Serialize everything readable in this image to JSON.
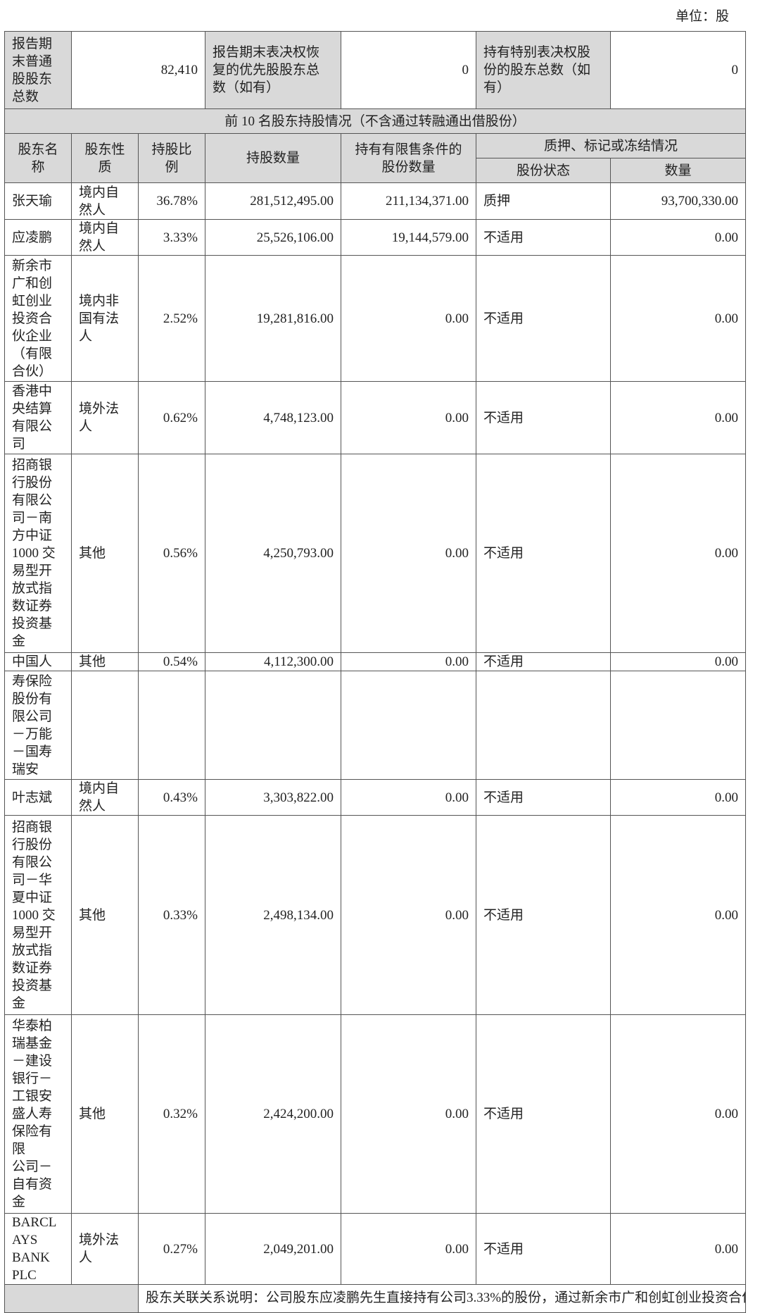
{
  "unit_label": "单位：股",
  "summary": {
    "common_holders_label": "报告期\n末普通\n股股东\n总数",
    "common_holders_value": "82,410",
    "preferred_label": "报告期末表决权恢\n复的优先股股东总\n数（如有）",
    "preferred_value": "0",
    "special_label": "持有特别表决权股\n份的股东总数（如\n有）",
    "special_value": "0"
  },
  "section_title": "前 10 名股东持股情况（不含通过转融通出借股份）",
  "headers": {
    "name": "股东名\n称",
    "nature": "股东性\n质",
    "ratio": "持股比\n例",
    "shares": "持股数量",
    "restricted": "持有有限售条件的\n股份数量",
    "pledge_group": "质押、标记或冻结情况",
    "status": "股份状态",
    "quantity": "数量"
  },
  "rows": [
    {
      "name": "张天瑜",
      "nature": "境内自\n然人",
      "ratio": "36.78%",
      "shares": "281,512,495.00",
      "restricted": "211,134,371.00",
      "status": "质押",
      "quantity": "93,700,330.00"
    },
    {
      "name": "应凌鹏",
      "nature": "境内自\n然人",
      "ratio": "3.33%",
      "shares": "25,526,106.00",
      "restricted": "19,144,579.00",
      "status": "不适用",
      "quantity": "0.00"
    },
    {
      "name": "新余市\n广和创\n虹创业\n投资合\n伙企业\n（有限\n合伙）",
      "nature": "境内非\n国有法\n人",
      "ratio": "2.52%",
      "shares": "19,281,816.00",
      "restricted": "0.00",
      "status": "不适用",
      "quantity": "0.00"
    },
    {
      "name": "香港中\n央结算\n有限公\n司",
      "nature": "境外法\n人",
      "ratio": "0.62%",
      "shares": "4,748,123.00",
      "restricted": "0.00",
      "status": "不适用",
      "quantity": "0.00"
    },
    {
      "name": "招商银\n行股份\n有限公\n司－南\n方中证\n1000 交\n易型开\n放式指\n数证券\n投资基\n金",
      "nature": "其他",
      "ratio": "0.56%",
      "shares": "4,250,793.00",
      "restricted": "0.00",
      "status": "不适用",
      "quantity": "0.00"
    },
    {
      "name": "中国人",
      "nature": "其他",
      "ratio": "0.54%",
      "shares": "4,112,300.00",
      "restricted": "0.00",
      "status": "不适用",
      "quantity": "0.00"
    },
    {
      "name": "寿保险\n股份有\n限公司\n－万能\n－国寿\n瑞安",
      "nature": "",
      "ratio": "",
      "shares": "",
      "restricted": "",
      "status": "",
      "quantity": ""
    },
    {
      "name": "叶志斌",
      "nature": "境内自\n然人",
      "ratio": "0.43%",
      "shares": "3,303,822.00",
      "restricted": "0.00",
      "status": "不适用",
      "quantity": "0.00"
    },
    {
      "name": "招商银\n行股份\n有限公\n司－华\n夏中证\n1000 交\n易型开\n放式指\n数证券\n投资基\n金",
      "nature": "其他",
      "ratio": "0.33%",
      "shares": "2,498,134.00",
      "restricted": "0.00",
      "status": "不适用",
      "quantity": "0.00"
    },
    {
      "name": "华泰柏\n瑞基金\n－建设\n银行－\n工银安\n盛人寿\n保险有\n限\n公司－\n自有资\n金",
      "nature": "其他",
      "ratio": "0.32%",
      "shares": "2,424,200.00",
      "restricted": "0.00",
      "status": "不适用",
      "quantity": "0.00"
    },
    {
      "name": "BARCL\nAYS\nBANK\nPLC",
      "nature": "境外法\n人",
      "ratio": "0.27%",
      "shares": "2,049,201.00",
      "restricted": "0.00",
      "status": "不适用",
      "quantity": "0.00"
    }
  ],
  "footer_text": "股东关联关系说明：公司股东应凌鹏先生直接持有公司3.33%的股份，通过新余市广和创虹创业投资合伙企业"
}
